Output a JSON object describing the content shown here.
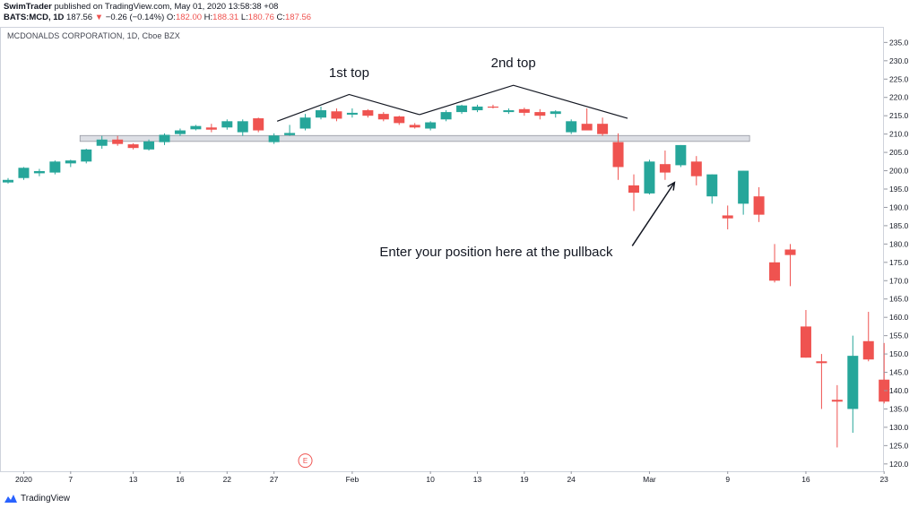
{
  "header": {
    "publisher": "SwimTrader",
    "published_text": "published on TradingView.com, May 01, 2020 13:58:38 +08",
    "symbol": "BATS:MCD, 1D",
    "last_price": "187.56",
    "change_arrow": "▼",
    "change": "−0.26 (−0.14%)",
    "open_label": "O:",
    "open": "182.00",
    "high_label": "H:",
    "high": "188.31",
    "low_label": "L:",
    "low": "180.76",
    "close_label": "C:",
    "close": "187.56"
  },
  "chart_title": "MCDONALDS CORPORATION, 1D, Cboe BZX",
  "footer": {
    "brand": "TradingView",
    "logo_icon": "tradingview-logo-icon"
  },
  "colors": {
    "up": "#26a69a",
    "down": "#ef5350",
    "axis_text": "#131722",
    "grid": "#e0e3eb"
  },
  "chart_data": {
    "type": "candlestick",
    "title": "MCDONALDS CORPORATION, 1D, Cboe BZX",
    "ylim": [
      118,
      239
    ],
    "y_ticks": [
      120,
      125,
      130,
      135,
      140,
      145,
      150,
      155,
      160,
      165,
      170,
      175,
      180,
      185,
      190,
      195,
      200,
      205,
      210,
      215,
      220,
      225,
      230,
      235
    ],
    "x_tick_labels": [
      {
        "label": "2020",
        "index": 1
      },
      {
        "label": "7",
        "index": 4
      },
      {
        "label": "13",
        "index": 8
      },
      {
        "label": "16",
        "index": 11
      },
      {
        "label": "22",
        "index": 14
      },
      {
        "label": "27",
        "index": 17
      },
      {
        "label": "Feb",
        "index": 22
      },
      {
        "label": "10",
        "index": 27
      },
      {
        "label": "13",
        "index": 30
      },
      {
        "label": "19",
        "index": 33
      },
      {
        "label": "24",
        "index": 36
      },
      {
        "label": "Mar",
        "index": 41
      },
      {
        "label": "9",
        "index": 46
      },
      {
        "label": "16",
        "index": 51
      },
      {
        "label": "23",
        "index": 56
      }
    ],
    "candles": [
      {
        "o": 196.8,
        "h": 198.0,
        "l": 196.5,
        "c": 197.5
      },
      {
        "o": 198.0,
        "h": 201.0,
        "l": 197.5,
        "c": 200.8
      },
      {
        "o": 199.3,
        "h": 200.5,
        "l": 198.5,
        "c": 199.9
      },
      {
        "o": 199.5,
        "h": 202.8,
        "l": 199.0,
        "c": 202.5
      },
      {
        "o": 202.0,
        "h": 203.0,
        "l": 201.0,
        "c": 202.8
      },
      {
        "o": 202.5,
        "h": 206.0,
        "l": 202.0,
        "c": 205.8
      },
      {
        "o": 206.8,
        "h": 209.5,
        "l": 206.0,
        "c": 208.5
      },
      {
        "o": 208.5,
        "h": 209.5,
        "l": 206.8,
        "c": 207.3
      },
      {
        "o": 207.2,
        "h": 207.5,
        "l": 205.8,
        "c": 206.2
      },
      {
        "o": 205.8,
        "h": 208.5,
        "l": 205.5,
        "c": 208.0
      },
      {
        "o": 207.8,
        "h": 210.2,
        "l": 207.0,
        "c": 209.8
      },
      {
        "o": 210.0,
        "h": 211.5,
        "l": 209.5,
        "c": 211.0
      },
      {
        "o": 211.3,
        "h": 212.5,
        "l": 211.0,
        "c": 212.2
      },
      {
        "o": 211.8,
        "h": 212.8,
        "l": 210.5,
        "c": 211.2
      },
      {
        "o": 211.8,
        "h": 214.0,
        "l": 211.2,
        "c": 213.5
      },
      {
        "o": 210.5,
        "h": 214.0,
        "l": 209.5,
        "c": 213.5
      },
      {
        "o": 214.3,
        "h": 214.5,
        "l": 210.5,
        "c": 211.0
      },
      {
        "o": 207.8,
        "h": 210.2,
        "l": 207.3,
        "c": 209.6
      },
      {
        "o": 209.7,
        "h": 212.5,
        "l": 209.5,
        "c": 210.3
      },
      {
        "o": 211.5,
        "h": 215.5,
        "l": 211.0,
        "c": 214.5
      },
      {
        "o": 214.5,
        "h": 217.5,
        "l": 214.0,
        "c": 216.5
      },
      {
        "o": 216.2,
        "h": 217.0,
        "l": 213.5,
        "c": 214.2
      },
      {
        "o": 215.3,
        "h": 217.0,
        "l": 214.5,
        "c": 215.8
      },
      {
        "o": 216.5,
        "h": 216.8,
        "l": 214.5,
        "c": 215.0
      },
      {
        "o": 215.5,
        "h": 216.0,
        "l": 213.5,
        "c": 214.0
      },
      {
        "o": 214.8,
        "h": 215.0,
        "l": 212.5,
        "c": 213.0
      },
      {
        "o": 212.5,
        "h": 213.0,
        "l": 211.5,
        "c": 211.8
      },
      {
        "o": 211.5,
        "h": 213.5,
        "l": 211.0,
        "c": 213.2
      },
      {
        "o": 214.0,
        "h": 216.5,
        "l": 213.5,
        "c": 216.0
      },
      {
        "o": 216.0,
        "h": 218.0,
        "l": 215.5,
        "c": 217.8
      },
      {
        "o": 216.5,
        "h": 218.0,
        "l": 216.0,
        "c": 217.5
      },
      {
        "o": 217.5,
        "h": 218.0,
        "l": 217.0,
        "c": 217.3
      },
      {
        "o": 216.0,
        "h": 217.0,
        "l": 215.5,
        "c": 216.5
      },
      {
        "o": 216.8,
        "h": 217.2,
        "l": 215.0,
        "c": 215.8
      },
      {
        "o": 216.0,
        "h": 216.8,
        "l": 214.0,
        "c": 215.0
      },
      {
        "o": 215.5,
        "h": 216.5,
        "l": 214.5,
        "c": 216.2
      },
      {
        "o": 210.5,
        "h": 214.0,
        "l": 210.0,
        "c": 213.5
      },
      {
        "o": 212.8,
        "h": 217.0,
        "l": 212.0,
        "c": 211.0
      },
      {
        "o": 212.8,
        "h": 214.5,
        "l": 209.5,
        "c": 210.0
      },
      {
        "o": 207.8,
        "h": 210.2,
        "l": 197.5,
        "c": 201.0
      },
      {
        "o": 196.0,
        "h": 199.0,
        "l": 189.0,
        "c": 194.0
      },
      {
        "o": 193.8,
        "h": 203.0,
        "l": 193.5,
        "c": 202.5
      },
      {
        "o": 201.8,
        "h": 205.5,
        "l": 197.5,
        "c": 199.5
      },
      {
        "o": 201.5,
        "h": 207.0,
        "l": 201.0,
        "c": 207.0
      },
      {
        "o": 202.5,
        "h": 204.0,
        "l": 196.0,
        "c": 198.5
      },
      {
        "o": 193.0,
        "h": 199.0,
        "l": 191.0,
        "c": 199.0
      },
      {
        "o": 187.8,
        "h": 190.5,
        "l": 184.0,
        "c": 187.0
      },
      {
        "o": 191.0,
        "h": 200.0,
        "l": 188.0,
        "c": 200.0
      },
      {
        "o": 193.0,
        "h": 195.5,
        "l": 186.0,
        "c": 188.0
      },
      {
        "o": 175.0,
        "h": 180.0,
        "l": 169.5,
        "c": 170.0
      },
      {
        "o": 178.5,
        "h": 180.0,
        "l": 168.5,
        "c": 177.0
      },
      {
        "o": 157.5,
        "h": 162.0,
        "l": 149.0,
        "c": 149.0
      },
      {
        "o": 148.0,
        "h": 150.0,
        "l": 135.0,
        "c": 147.5
      },
      {
        "o": 137.5,
        "h": 141.5,
        "l": 124.5,
        "c": 137.0
      },
      {
        "o": 135.0,
        "h": 155.0,
        "l": 128.5,
        "c": 149.5
      },
      {
        "o": 153.5,
        "h": 161.5,
        "l": 148.0,
        "c": 148.5
      },
      {
        "o": 143.0,
        "h": 153.0,
        "l": 136.5,
        "c": 137.0
      }
    ],
    "support_zone": {
      "low": 208.0,
      "high": 209.6,
      "from_index": 5,
      "to_index": 47
    },
    "annotations": {
      "top1": "1st top",
      "top2": "2nd top",
      "entry": "Enter your position here at the pullback",
      "earnings_marker": "E"
    }
  }
}
